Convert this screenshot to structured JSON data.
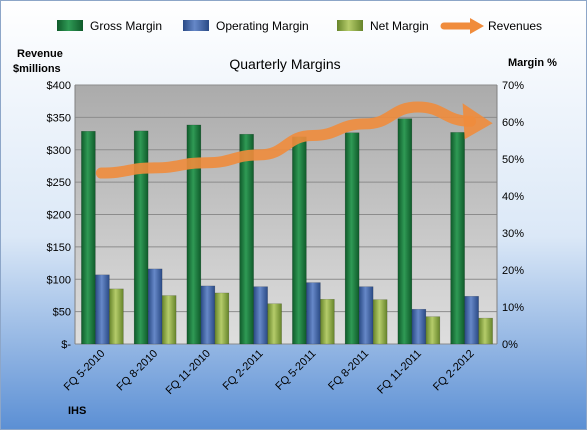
{
  "chart_data": {
    "type": "bar",
    "title": "Quarterly Margins",
    "categories": [
      "FQ 5-2010",
      "FQ 8-2010",
      "FQ 11-2010",
      "FQ 2-2011",
      "FQ 5-2011",
      "FQ 8-2011",
      "FQ 11-2011",
      "FQ 2-2012"
    ],
    "y_left_title_lines": [
      "Revenue",
      "$millions"
    ],
    "y_right_title": "Margin %",
    "y_left_ticks": [
      "$-",
      "$50",
      "$100",
      "$150",
      "$200",
      "$250",
      "$300",
      "$350",
      "$400"
    ],
    "y_right_ticks": [
      "0%",
      "10%",
      "20%",
      "30%",
      "40%",
      "50%",
      "60%",
      "70%"
    ],
    "y_left_range": [
      0,
      400
    ],
    "y_right_range": [
      0,
      70
    ],
    "grid": true,
    "legend_position": "top",
    "series": [
      {
        "name": "Gross Margin",
        "type": "bar",
        "axis": "right",
        "color": "#1e7a3e",
        "values": [
          57.5,
          57.6,
          59.2,
          56.7,
          56.0,
          57.1,
          60.9,
          57.2
        ]
      },
      {
        "name": "Operating Margin",
        "type": "bar",
        "axis": "right",
        "color": "#3d64a6",
        "values": [
          18.7,
          20.3,
          15.7,
          15.5,
          16.6,
          15.5,
          9.4,
          12.9
        ]
      },
      {
        "name": "Net Margin",
        "type": "bar",
        "axis": "right",
        "color": "#8aa543",
        "values": [
          14.9,
          13.1,
          13.8,
          10.9,
          12.1,
          12.0,
          7.4,
          7.0
        ]
      },
      {
        "name": "Revenues",
        "type": "line",
        "axis": "left",
        "color": "#f08c3c",
        "values": [
          264,
          272,
          280,
          292,
          322,
          340,
          366,
          344
        ]
      }
    ],
    "source_label": "IHS"
  }
}
